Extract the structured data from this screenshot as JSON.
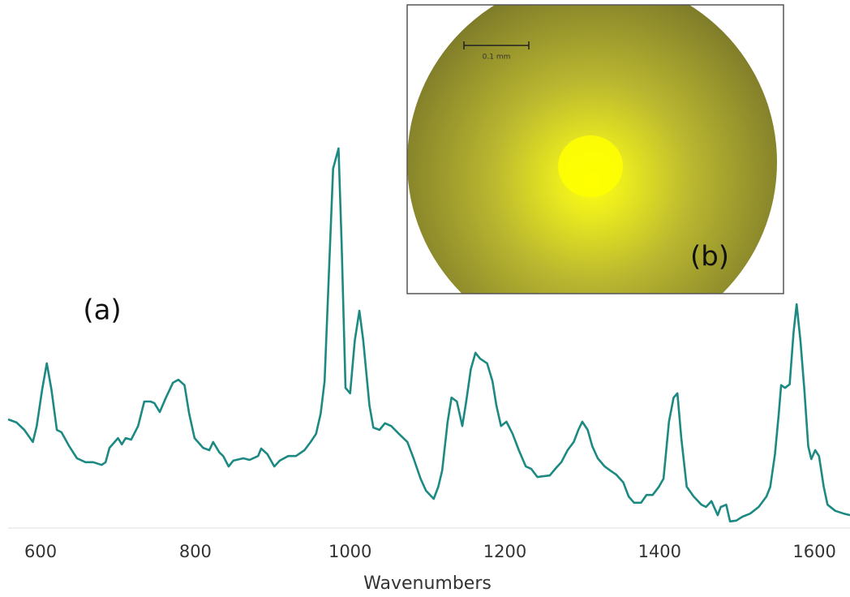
{
  "chart_data": {
    "type": "line",
    "xlabel": "Wavenumbers",
    "annotations": [
      "(a)",
      "(b)",
      "0.1 mm"
    ],
    "color": "#1c8a82",
    "x": [
      558,
      569,
      579,
      590,
      595,
      602,
      608,
      614,
      621,
      627,
      637,
      647,
      658,
      668,
      679,
      684,
      689,
      700,
      705,
      710,
      717,
      726,
      734,
      742,
      747,
      754,
      762,
      771,
      778,
      786,
      792,
      799,
      810,
      818,
      823,
      831,
      836,
      843,
      849,
      862,
      870,
      881,
      885,
      893,
      902,
      909,
      920,
      930,
      941,
      949,
      956,
      962,
      967,
      972,
      978,
      985,
      989,
      994,
      1000,
      1006,
      1012,
      1017,
      1025,
      1030,
      1038,
      1045,
      1053,
      1063,
      1074,
      1082,
      1091,
      1098,
      1108,
      1114,
      1119,
      1126,
      1131,
      1138,
      1145,
      1150,
      1156,
      1162,
      1168,
      1177,
      1184,
      1189,
      1195,
      1202,
      1210,
      1218,
      1227,
      1234,
      1242,
      1250,
      1258,
      1266,
      1273,
      1281,
      1289,
      1295,
      1300,
      1307,
      1313,
      1320,
      1329,
      1336,
      1344,
      1353,
      1360,
      1367,
      1376,
      1383,
      1391,
      1399,
      1405,
      1412,
      1418,
      1423,
      1428,
      1435,
      1444,
      1454,
      1460,
      1467,
      1475,
      1479,
      1486,
      1491,
      1499,
      1507,
      1517,
      1528,
      1538,
      1543,
      1549,
      1554,
      1557,
      1562,
      1568,
      1573,
      1577,
      1582,
      1587,
      1592,
      1596,
      1601,
      1606,
      1612,
      1617,
      1627,
      1638,
      1646
    ],
    "values": [
      27.7,
      26.9,
      25.0,
      21.9,
      26.0,
      35.4,
      42.1,
      35.4,
      25.0,
      24.4,
      20.8,
      17.7,
      16.7,
      16.7,
      16.0,
      16.7,
      20.4,
      22.9,
      21.3,
      22.9,
      22.5,
      26.0,
      32.3,
      32.3,
      31.9,
      29.6,
      33.3,
      37.1,
      37.9,
      36.5,
      29.2,
      22.9,
      20.4,
      19.8,
      21.9,
      19.2,
      18.3,
      15.6,
      17.1,
      17.7,
      17.3,
      18.3,
      20.2,
      18.8,
      15.6,
      17.1,
      18.3,
      18.3,
      19.8,
      21.9,
      24.0,
      29.2,
      37.5,
      62.5,
      92.1,
      97.3,
      72.9,
      35.8,
      34.4,
      47.9,
      55.6,
      47.9,
      31.3,
      25.6,
      25.0,
      26.7,
      26.0,
      24.0,
      21.9,
      17.7,
      12.5,
      9.4,
      7.3,
      10.4,
      14.6,
      27.1,
      33.3,
      32.3,
      26.0,
      32.3,
      40.6,
      44.8,
      43.3,
      42.1,
      37.5,
      31.3,
      26.0,
      27.1,
      24.0,
      19.8,
      15.6,
      15.0,
      12.9,
      13.1,
      13.3,
      15.2,
      16.7,
      19.8,
      21.9,
      25.0,
      27.1,
      25.0,
      20.8,
      17.7,
      15.6,
      14.6,
      13.5,
      11.5,
      7.9,
      6.3,
      6.3,
      8.3,
      8.3,
      10.4,
      12.5,
      27.1,
      33.3,
      34.4,
      22.9,
      10.4,
      7.9,
      5.8,
      5.2,
      6.7,
      3.1,
      5.2,
      5.8,
      1.5,
      1.7,
      2.7,
      3.5,
      5.2,
      7.9,
      10.4,
      18.8,
      29.2,
      36.5,
      35.8,
      36.7,
      50.0,
      57.3,
      47.9,
      35.4,
      20.8,
      17.5,
      19.8,
      18.3,
      10.4,
      5.8,
      4.2,
      3.5,
      3.1
    ],
    "xlim": [
      558,
      1646
    ],
    "ylim": [
      0,
      100
    ],
    "xticks": [
      600,
      800,
      1000,
      1200,
      1400,
      1600
    ]
  }
}
